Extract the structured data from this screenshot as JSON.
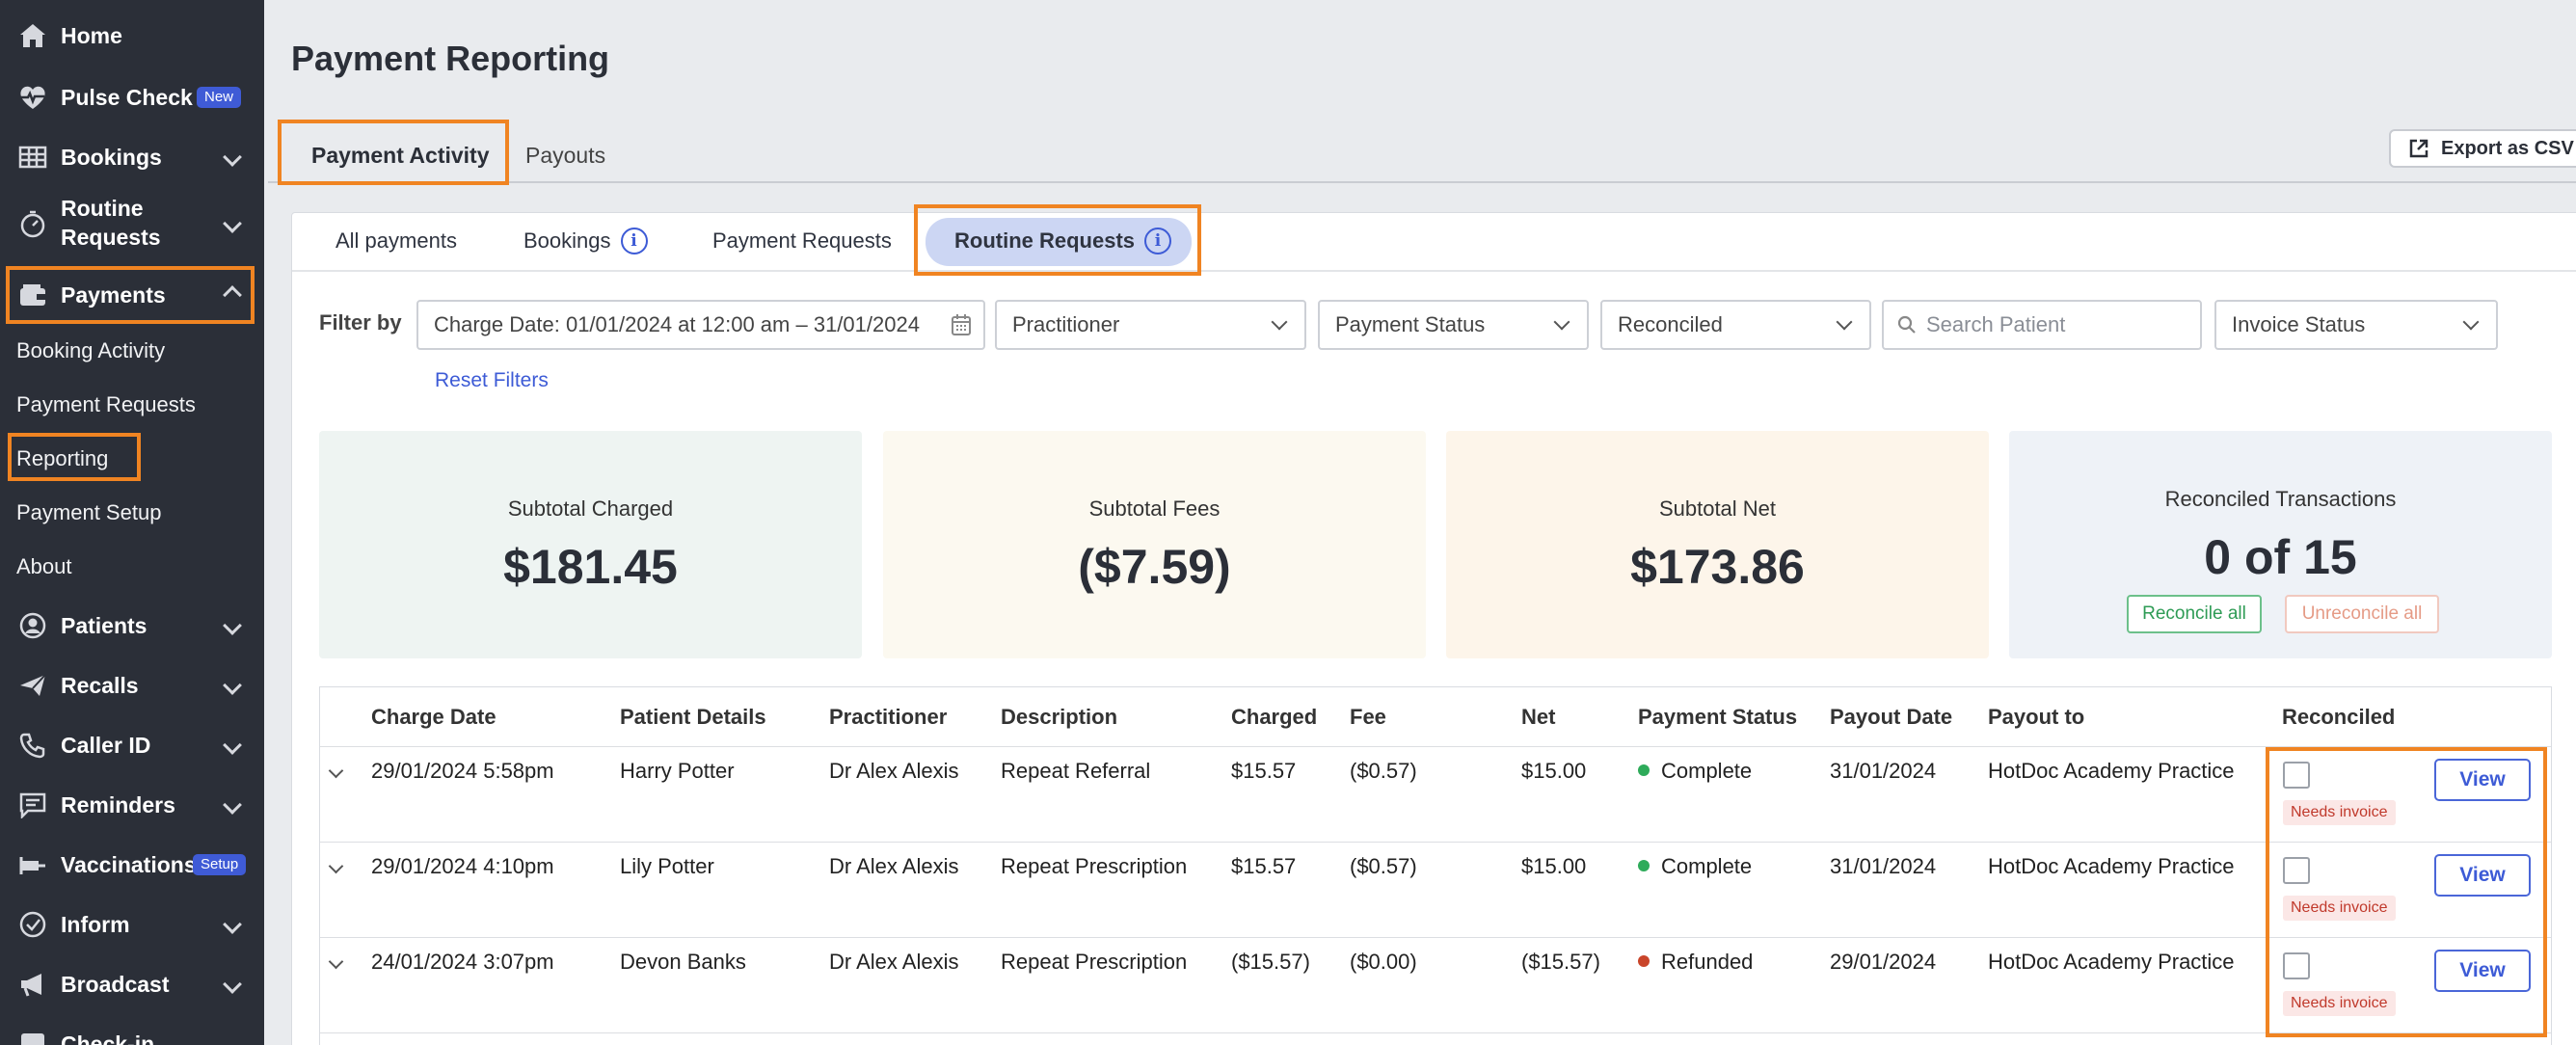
{
  "sidebar": {
    "home": "Home",
    "pulse_check": "Pulse Check",
    "pulse_badge": "New",
    "bookings": "Bookings",
    "routine_requests_1": "Routine",
    "routine_requests_2": "Requests",
    "payments": "Payments",
    "payments_sub": [
      "Booking Activity",
      "Payment Requests",
      "Reporting",
      "Payment Setup",
      "About"
    ],
    "patients": "Patients",
    "recalls": "Recalls",
    "caller_id": "Caller ID",
    "reminders": "Reminders",
    "vaccinations": "Vaccinations",
    "vacc_badge": "Setup",
    "inform": "Inform",
    "broadcast": "Broadcast",
    "checkin": "Check-in"
  },
  "page": {
    "title": "Payment Reporting",
    "tabs": [
      "Payment Activity",
      "Payouts"
    ],
    "export": "Export as CSV"
  },
  "subtabs": [
    "All payments",
    "Bookings",
    "Payment Requests",
    "Routine Requests"
  ],
  "filters": {
    "label": "Filter by",
    "charge_date": "Charge Date: 01/01/2024 at 12:00 am – 31/01/2024",
    "practitioner": "Practitioner",
    "payment_status": "Payment Status",
    "reconciled": "Reconciled",
    "search_placeholder": "Search Patient",
    "invoice_status": "Invoice Status",
    "reset": "Reset Filters"
  },
  "summary": {
    "charged_title": "Subtotal Charged",
    "charged_value": "$181.45",
    "fees_title": "Subtotal Fees",
    "fees_value": "($7.59)",
    "net_title": "Subtotal Net",
    "net_value": "$173.86",
    "reconciled_title": "Reconciled Transactions",
    "reconciled_value": "0 of 15",
    "reconcile_all": "Reconcile all",
    "unreconcile_all": "Unreconcile all"
  },
  "table": {
    "headers": [
      "Charge Date",
      "Patient Details",
      "Practitioner",
      "Description",
      "Charged",
      "Fee",
      "Net",
      "Payment Status",
      "Payout Date",
      "Payout to",
      "Reconciled"
    ],
    "rows": [
      {
        "date": "29/01/2024 5:58pm",
        "patient": "Harry Potter",
        "practitioner": "Dr Alex Alexis",
        "description": "Repeat Referral",
        "charged": "$15.57",
        "fee": "($0.57)",
        "net": "$15.00",
        "status": "Complete",
        "status_color": "#2eab5a",
        "payout_date": "31/01/2024",
        "payout_to": "HotDoc Academy Practice",
        "tag": "Needs invoice",
        "view": "View"
      },
      {
        "date": "29/01/2024 4:10pm",
        "patient": "Lily Potter",
        "practitioner": "Dr Alex Alexis",
        "description": "Repeat Prescription",
        "charged": "$15.57",
        "fee": "($0.57)",
        "net": "$15.00",
        "status": "Complete",
        "status_color": "#2eab5a",
        "payout_date": "31/01/2024",
        "payout_to": "HotDoc Academy Practice",
        "tag": "Needs invoice",
        "view": "View"
      },
      {
        "date": "24/01/2024 3:07pm",
        "patient": "Devon Banks",
        "practitioner": "Dr Alex Alexis",
        "description": "Repeat Prescription",
        "charged": "($15.57)",
        "fee": "($0.00)",
        "net": "($15.57)",
        "status": "Refunded",
        "status_color": "#c9452a",
        "payout_date": "29/01/2024",
        "payout_to": "HotDoc Academy Practice",
        "tag": "Needs invoice",
        "view": "View"
      }
    ]
  }
}
